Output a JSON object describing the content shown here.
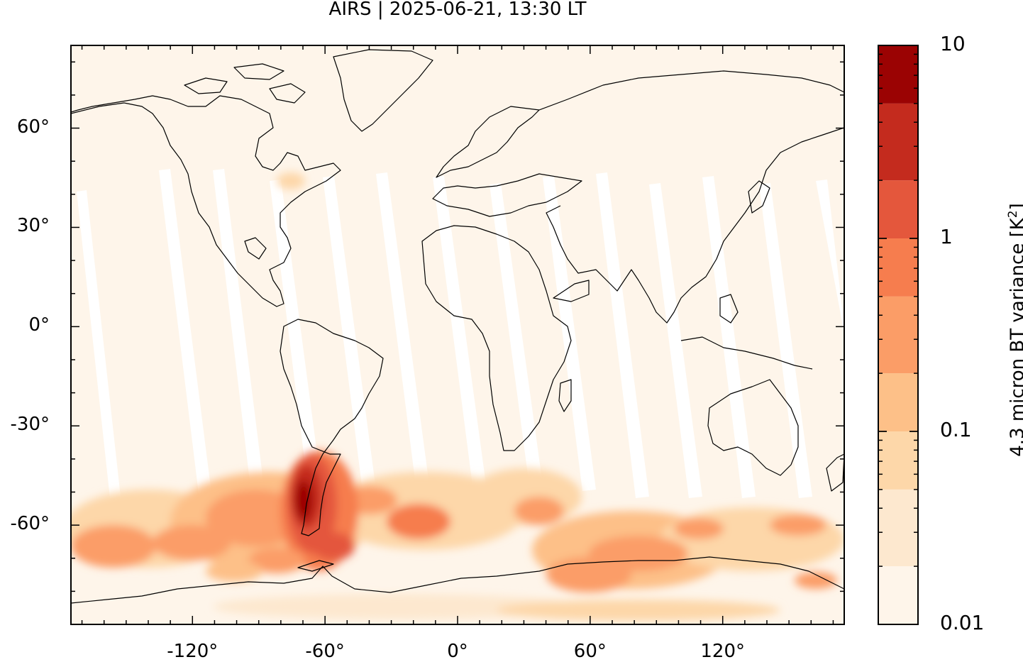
{
  "title": "AIRS | 2025-06-21, 13:30 LT",
  "map": {
    "projection": "equirectangular",
    "lon_range": [
      -175,
      175
    ],
    "lat_range": [
      -90,
      85
    ],
    "background_color": "#fef5ea",
    "coastline_color": "#000000",
    "y_ticks": [
      {
        "value": 60,
        "label": "60°"
      },
      {
        "value": 30,
        "label": "30°"
      },
      {
        "value": 0,
        "label": "0°"
      },
      {
        "value": -30,
        "label": "-30°"
      },
      {
        "value": -60,
        "label": "-60°"
      }
    ],
    "x_ticks": [
      {
        "value": -120,
        "label": "-120°"
      },
      {
        "value": -60,
        "label": "-60°"
      },
      {
        "value": 0,
        "label": "0°"
      },
      {
        "value": 60,
        "label": "60°"
      },
      {
        "value": 120,
        "label": "120°"
      }
    ]
  },
  "colorbar": {
    "label_main": "4.3 micron BT variance [K",
    "label_sup": "2",
    "label_end": "]",
    "scale": "log",
    "range": [
      0.01,
      10
    ],
    "tick_labels": [
      {
        "value": 10,
        "label": "10"
      },
      {
        "value": 1,
        "label": "1"
      },
      {
        "value": 0.1,
        "label": "0.1"
      },
      {
        "value": 0.01,
        "label": "0.01"
      }
    ],
    "levels": [
      {
        "from": 0.01,
        "to": 0.02,
        "color": "#fef5ea"
      },
      {
        "from": 0.02,
        "to": 0.05,
        "color": "#fde8cf"
      },
      {
        "from": 0.05,
        "to": 0.1,
        "color": "#fdd7a9"
      },
      {
        "from": 0.1,
        "to": 0.2,
        "color": "#fdc088"
      },
      {
        "from": 0.2,
        "to": 0.5,
        "color": "#fb9d67"
      },
      {
        "from": 0.5,
        "to": 1,
        "color": "#f67d4e"
      },
      {
        "from": 1,
        "to": 2,
        "color": "#e4573c"
      },
      {
        "from": 2,
        "to": 5,
        "color": "#c42b1e"
      },
      {
        "from": 5,
        "to": 10,
        "color": "#9b0303"
      }
    ]
  }
}
